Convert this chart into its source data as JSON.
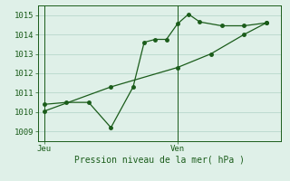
{
  "xlabel": "Pression niveau de la mer( hPa )",
  "bg_color": "#dff0e8",
  "line_color": "#1a5c1a",
  "grid_color": "#b8d8cc",
  "tick_label_color": "#1a5c1a",
  "spine_color": "#1a5c1a",
  "ylim": [
    1008.5,
    1015.5
  ],
  "yticks": [
    1009,
    1010,
    1011,
    1012,
    1013,
    1014,
    1015
  ],
  "day_labels": [
    "Jeu",
    "Ven"
  ],
  "day_positions": [
    0.0,
    1.0
  ],
  "s1x": [
    0.0,
    0.167,
    0.333,
    0.5,
    0.667,
    0.75,
    0.833,
    0.917,
    1.0,
    1.083,
    1.167,
    1.333,
    1.5,
    1.667
  ],
  "s1y": [
    1010.4,
    1010.5,
    1010.5,
    1009.2,
    1011.3,
    1013.6,
    1013.75,
    1013.75,
    1014.55,
    1015.05,
    1014.65,
    1014.45,
    1014.45,
    1014.6
  ],
  "s2x": [
    0.0,
    0.5,
    1.0,
    1.25,
    1.5,
    1.667
  ],
  "s2y": [
    1010.05,
    1011.3,
    1012.3,
    1013.0,
    1014.0,
    1014.6
  ],
  "xlim": [
    -0.05,
    1.78
  ]
}
